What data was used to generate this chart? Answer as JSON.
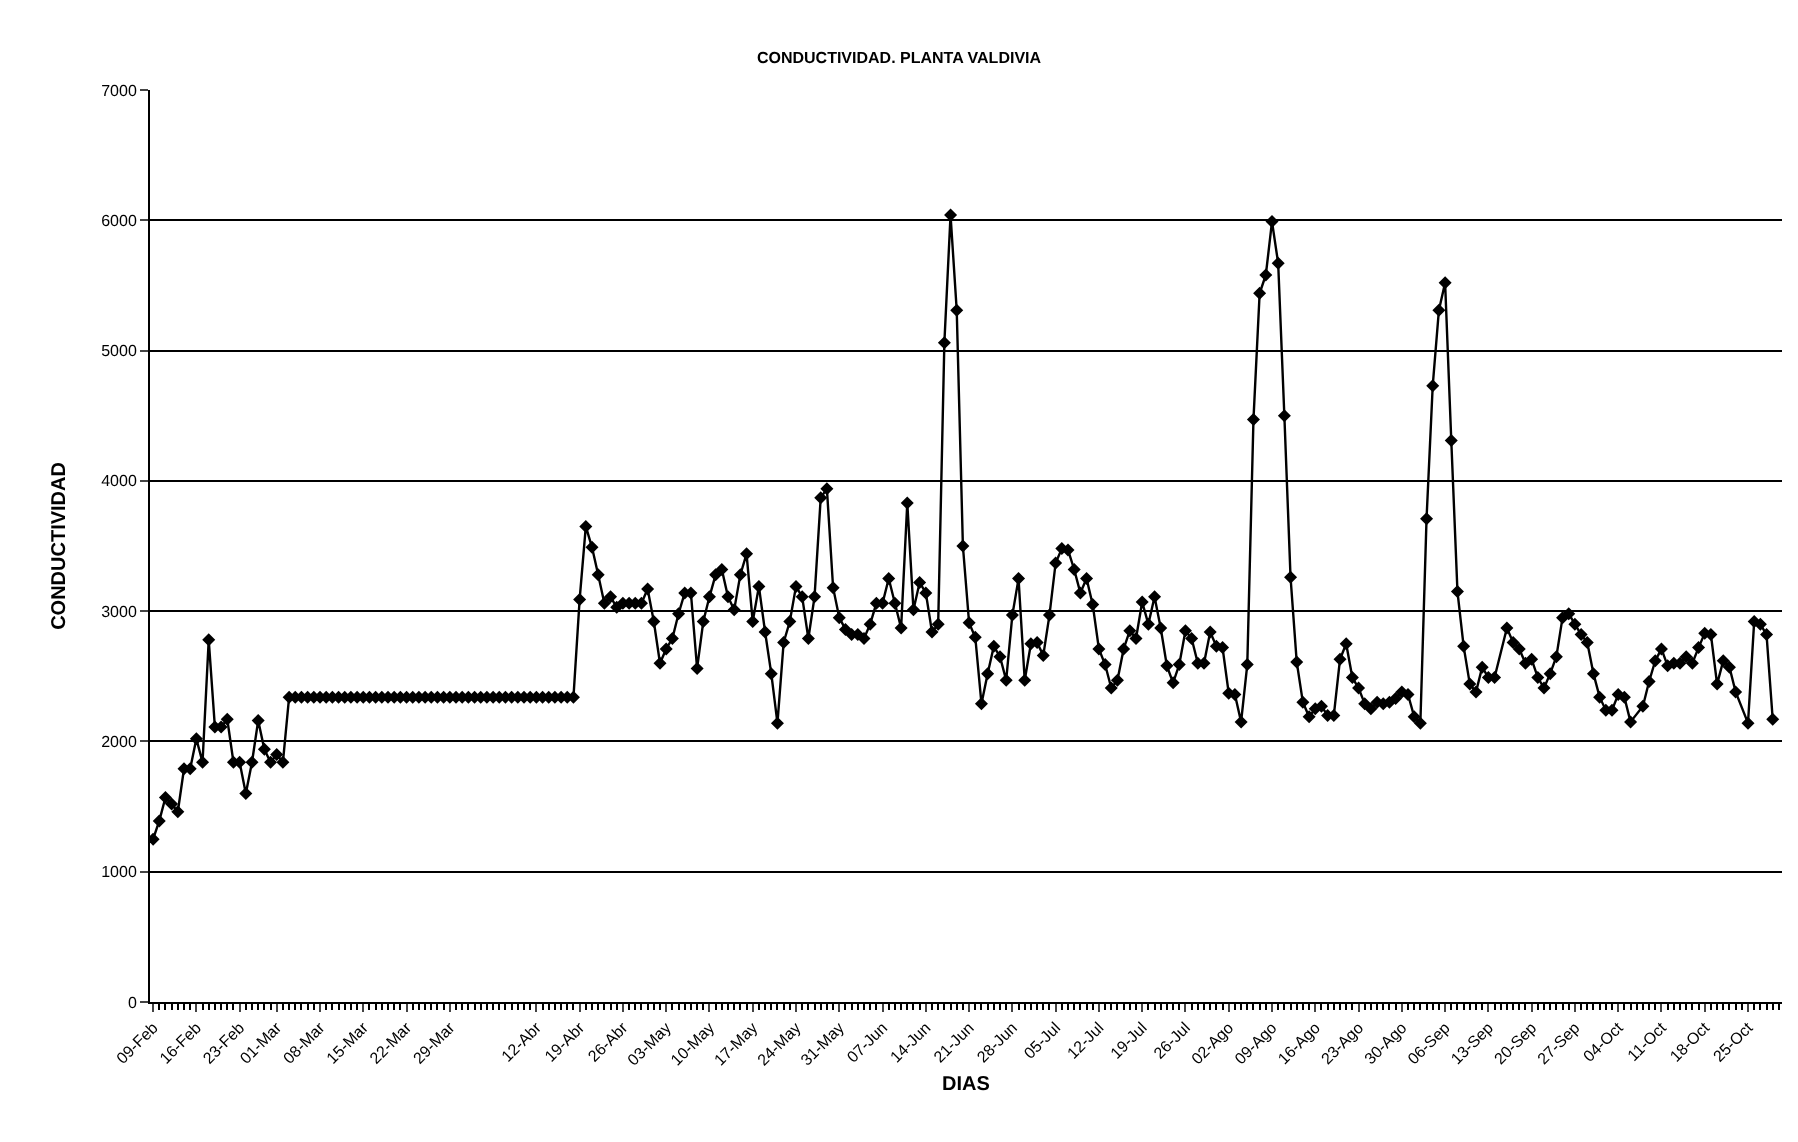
{
  "chart_data": {
    "type": "line",
    "title": "CONDUCTIVIDAD. PLANTA VALDIVIA",
    "xlabel": "DIAS",
    "ylabel": "CONDUCTIVIDAD",
    "x": [
      "--02-09",
      "--02-10",
      "--02-11",
      "--02-12",
      "--02-13",
      "--02-14",
      "--02-15",
      "--02-16",
      "--02-17",
      "--02-18",
      "--02-19",
      "--02-20",
      "--02-21",
      "--02-22",
      "--02-23",
      "--02-24",
      "--02-25",
      "--02-26",
      "--02-27",
      "--02-28",
      "--03-01",
      "--03-02",
      "--03-03",
      "--03-04",
      "--03-05",
      "--03-06",
      "--03-07",
      "--03-08",
      "--03-09",
      "--03-10",
      "--03-11",
      "--03-12",
      "--03-13",
      "--03-14",
      "--03-15",
      "--03-16",
      "--03-17",
      "--03-18",
      "--03-19",
      "--03-20",
      "--03-21",
      "--03-22",
      "--03-23",
      "--03-24",
      "--03-25",
      "--03-26",
      "--03-27",
      "--03-28",
      "--03-29",
      "--03-30",
      "--03-31",
      "--04-01",
      "--04-02",
      "--04-03",
      "--04-04",
      "--04-05",
      "--04-06",
      "--04-07",
      "--04-08",
      "--04-09",
      "--04-10",
      "--04-11",
      "--04-12",
      "--04-13",
      "--04-14",
      "--04-15",
      "--04-16",
      "--04-17",
      "--04-18",
      "--04-19",
      "--04-20",
      "--04-21",
      "--04-22",
      "--04-23",
      "--04-24",
      "--04-25",
      "--04-26",
      "--04-27",
      "--04-28",
      "--04-29",
      "--04-30",
      "--05-01",
      "--05-02",
      "--05-03",
      "--05-04",
      "--05-05",
      "--05-06",
      "--05-07",
      "--05-08",
      "--05-09",
      "--05-10",
      "--05-11",
      "--05-12",
      "--05-13",
      "--05-14",
      "--05-15",
      "--05-16",
      "--05-17",
      "--05-18",
      "--05-19",
      "--05-20",
      "--05-21",
      "--05-22",
      "--05-23",
      "--05-24",
      "--05-25",
      "--05-26",
      "--05-27",
      "--05-28",
      "--05-29",
      "--05-30",
      "--05-31",
      "--06-01",
      "--06-02",
      "--06-03",
      "--06-04",
      "--06-05",
      "--06-06",
      "--06-07",
      "--06-08",
      "--06-09",
      "--06-10",
      "--06-11",
      "--06-12",
      "--06-13",
      "--06-14",
      "--06-15",
      "--06-16",
      "--06-17",
      "--06-18",
      "--06-19",
      "--06-20",
      "--06-21",
      "--06-22",
      "--06-23",
      "--06-24",
      "--06-25",
      "--06-26",
      "--06-27",
      "--06-28",
      "--06-29",
      "--06-30",
      "--07-01",
      "--07-02",
      "--07-03",
      "--07-04",
      "--07-05",
      "--07-06",
      "--07-07",
      "--07-08",
      "--07-09",
      "--07-10",
      "--07-11",
      "--07-12",
      "--07-13",
      "--07-14",
      "--07-15",
      "--07-16",
      "--07-17",
      "--07-18",
      "--07-19",
      "--07-20",
      "--07-21",
      "--07-22",
      "--07-23",
      "--07-24",
      "--07-25",
      "--07-26",
      "--07-27",
      "--07-28",
      "--07-29",
      "--07-30",
      "--07-31",
      "--08-01",
      "--08-02",
      "--08-03",
      "--08-04",
      "--08-05",
      "--08-06",
      "--08-07",
      "--08-08",
      "--08-09",
      "--08-10",
      "--08-11",
      "--08-12",
      "--08-13",
      "--08-14",
      "--08-15",
      "--08-16",
      "--08-17",
      "--08-18",
      "--08-19",
      "--08-20",
      "--08-21",
      "--08-22",
      "--08-23",
      "--08-24",
      "--08-25",
      "--08-26",
      "--08-27",
      "--08-28",
      "--08-29",
      "--08-30",
      "--08-31",
      "--09-01",
      "--09-02",
      "--09-03",
      "--09-04",
      "--09-05",
      "--09-06",
      "--09-07",
      "--09-08",
      "--09-09",
      "--09-10",
      "--09-11",
      "--09-12",
      "--09-13",
      "--09-14",
      "--09-16",
      "--09-17",
      "--09-18",
      "--09-19",
      "--09-20",
      "--09-21",
      "--09-22",
      "--09-23",
      "--09-24",
      "--09-25",
      "--09-26",
      "--09-27",
      "--09-28",
      "--09-29",
      "--09-30",
      "--10-01",
      "--10-02",
      "--10-03",
      "--10-04",
      "--10-05",
      "--10-06",
      "--10-08",
      "--10-09",
      "--10-10",
      "--10-11",
      "--10-12",
      "--10-13",
      "--10-14",
      "--10-15",
      "--10-16",
      "--10-17",
      "--10-18",
      "--10-19",
      "--10-20",
      "--10-21",
      "--10-22",
      "--10-23",
      "--10-25",
      "--10-26",
      "--10-27",
      "--10-28",
      "--10-29"
    ],
    "series": [
      {
        "color": "#000000",
        "values": [
          1250,
          1390,
          1570,
          1520,
          1460,
          1790,
          1790,
          2020,
          1840,
          2780,
          2110,
          2110,
          2170,
          1840,
          1840,
          1600,
          1840,
          2160,
          1940,
          1840,
          1900,
          1840,
          2340,
          2340,
          2340,
          2340,
          2340,
          2340,
          2340,
          2340,
          2340,
          2340,
          2340,
          2340,
          2340,
          2340,
          2340,
          2340,
          2340,
          2340,
          2340,
          2340,
          2340,
          2340,
          2340,
          2340,
          2340,
          2340,
          2340,
          2340,
          2340,
          2340,
          2340,
          2340,
          2340,
          2340,
          2340,
          2340,
          2340,
          2340,
          2340,
          2340,
          2340,
          2340,
          2340,
          2340,
          2340,
          2340,
          2340,
          3090,
          3650,
          3490,
          3280,
          3060,
          3110,
          3030,
          3060,
          3060,
          3060,
          3060,
          3170,
          2920,
          2600,
          2710,
          2790,
          2980,
          3140,
          3140,
          2560,
          2920,
          3110,
          3280,
          3320,
          3110,
          3010,
          3280,
          3440,
          2920,
          3190,
          2840,
          2520,
          2140,
          2760,
          2920,
          3190,
          3110,
          2790,
          3110,
          3870,
          3940,
          3180,
          2950,
          2860,
          2820,
          2820,
          2790,
          2900,
          3060,
          3060,
          3250,
          3060,
          2870,
          3830,
          3010,
          3220,
          3140,
          2840,
          2900,
          5060,
          6040,
          5310,
          3500,
          2910,
          2800,
          2290,
          2520,
          2730,
          2650,
          2470,
          2970,
          3250,
          2470,
          2750,
          2760,
          2660,
          2970,
          3370,
          3480,
          3470,
          3320,
          3140,
          3250,
          3050,
          2710,
          2590,
          2410,
          2470,
          2710,
          2850,
          2790,
          3070,
          2900,
          3110,
          2870,
          2580,
          2450,
          2590,
          2850,
          2790,
          2600,
          2600,
          2840,
          2730,
          2720,
          2370,
          2360,
          2150,
          2590,
          4470,
          5440,
          5580,
          5990,
          5670,
          4500,
          3260,
          2610,
          2300,
          2190,
          2250,
          2270,
          2200,
          2200,
          2630,
          2750,
          2490,
          2410,
          2290,
          2250,
          2300,
          2290,
          2300,
          2330,
          2380,
          2360,
          2190,
          2140,
          3710,
          4730,
          5310,
          5520,
          4310,
          3150,
          2730,
          2440,
          2380,
          2570,
          2490,
          2490,
          2870,
          2760,
          2710,
          2600,
          2630,
          2490,
          2410,
          2520,
          2650,
          2950,
          2980,
          2900,
          2820,
          2760,
          2520,
          2340,
          2240,
          2240,
          2360,
          2340,
          2150,
          2270,
          2460,
          2620,
          2710,
          2580,
          2600,
          2600,
          2650,
          2600,
          2720,
          2830,
          2820,
          2440,
          2620,
          2570,
          2380,
          2140,
          2920,
          2900,
          2820,
          2170
        ]
      }
    ],
    "xlim": [
      "--02-08T12:00",
      "--10-30T12:00"
    ],
    "xticks": [
      {
        "value": "--02-09",
        "label": "09-Feb"
      },
      {
        "value": "--02-16",
        "label": "16-Feb"
      },
      {
        "value": "--02-23",
        "label": "23-Feb"
      },
      {
        "value": "--03-01",
        "label": "01-Mar"
      },
      {
        "value": "--03-08",
        "label": "08-Mar"
      },
      {
        "value": "--03-15",
        "label": "15-Mar"
      },
      {
        "value": "--03-22",
        "label": "22-Mar"
      },
      {
        "value": "--03-29",
        "label": "29-Mar"
      },
      {
        "value": "--04-12",
        "label": "12-Abr"
      },
      {
        "value": "--04-19",
        "label": "19-Abr"
      },
      {
        "value": "--04-26",
        "label": "26-Abr"
      },
      {
        "value": "--05-03",
        "label": "03-May"
      },
      {
        "value": "--05-10",
        "label": "10-May"
      },
      {
        "value": "--05-17",
        "label": "17-May"
      },
      {
        "value": "--05-24",
        "label": "24-May"
      },
      {
        "value": "--05-31",
        "label": "31-May"
      },
      {
        "value": "--06-07",
        "label": "07-Jun"
      },
      {
        "value": "--06-14",
        "label": "14-Jun"
      },
      {
        "value": "--06-21",
        "label": "21-Jun"
      },
      {
        "value": "--06-28",
        "label": "28-Jun"
      },
      {
        "value": "--07-05",
        "label": "05-Jul"
      },
      {
        "value": "--07-12",
        "label": "12-Jul"
      },
      {
        "value": "--07-19",
        "label": "19-Jul"
      },
      {
        "value": "--07-26",
        "label": "26-Jul"
      },
      {
        "value": "--08-02",
        "label": "02-Ago"
      },
      {
        "value": "--08-09",
        "label": "09-Ago"
      },
      {
        "value": "--08-16",
        "label": "16-Ago"
      },
      {
        "value": "--08-23",
        "label": "23-Ago"
      },
      {
        "value": "--08-30",
        "label": "30-Ago"
      },
      {
        "value": "--09-06",
        "label": "06-Sep"
      },
      {
        "value": "--09-13",
        "label": "13-Sep"
      },
      {
        "value": "--09-20",
        "label": "20-Sep"
      },
      {
        "value": "--09-27",
        "label": "27-Sep"
      },
      {
        "value": "--10-04",
        "label": "04-Oct"
      },
      {
        "value": "--10-11",
        "label": "11-Oct"
      },
      {
        "value": "--10-18",
        "label": "18-Oct"
      },
      {
        "value": "--10-25",
        "label": "25-Oct"
      }
    ],
    "ylim": [
      0,
      7000
    ],
    "yticks": [
      0,
      1000,
      2000,
      3000,
      4000,
      5000,
      6000,
      7000
    ],
    "grid": "y",
    "marker": "diamond",
    "line_style": "solid"
  }
}
